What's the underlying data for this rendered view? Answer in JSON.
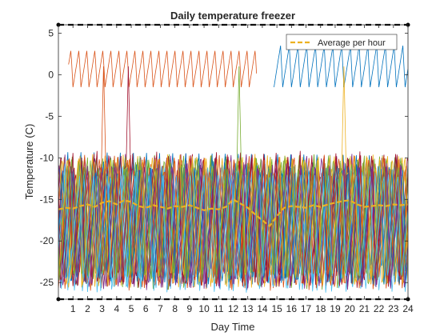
{
  "chart_data": {
    "type": "line",
    "title": "Daily temperature freezer",
    "xlabel": "Day Time",
    "ylabel": "Temperature (C)",
    "xlim": [
      0,
      24
    ],
    "ylim": [
      -27,
      6
    ],
    "xticks": [
      1,
      2,
      3,
      4,
      5,
      6,
      7,
      8,
      9,
      10,
      11,
      12,
      13,
      14,
      15,
      16,
      17,
      18,
      19,
      20,
      21,
      22,
      23,
      24
    ],
    "yticks": [
      -25,
      -20,
      -15,
      -10,
      -5,
      0,
      5
    ],
    "grid": false,
    "legend": {
      "location": "top-right",
      "entries": [
        "Average per hour"
      ]
    },
    "reference_lines": {
      "upper": 6,
      "lower": -27,
      "color": "#000000",
      "style": "dashed"
    },
    "series_colors": [
      "#0072BD",
      "#D95319",
      "#EDB120",
      "#7E2F8E",
      "#77AC30",
      "#4DBEEE",
      "#A2142F"
    ],
    "series": [
      {
        "name": "Average per hour",
        "color": "#EDB120",
        "style": "dashed",
        "x": [
          0,
          0.5,
          1,
          1.5,
          2,
          2.5,
          3,
          3.5,
          4,
          4.5,
          5,
          5.5,
          6,
          6.5,
          7,
          7.5,
          8,
          8.5,
          9,
          9.5,
          10,
          10.5,
          11,
          11.5,
          12,
          12.5,
          13,
          13.5,
          14,
          14.5,
          15,
          15.5,
          16,
          16.5,
          17,
          17.5,
          18,
          18.5,
          19,
          19.5,
          20,
          20.5,
          21,
          21.5,
          22,
          22.5,
          23,
          23.5,
          24
        ],
        "y": [
          -16.2,
          -16.0,
          -16.1,
          -15.8,
          -15.6,
          -15.9,
          -15.4,
          -15.2,
          -15.6,
          -15.1,
          -15.3,
          -15.8,
          -16.0,
          -15.7,
          -15.9,
          -16.1,
          -15.8,
          -15.9,
          -15.7,
          -16.0,
          -16.3,
          -16.1,
          -16.2,
          -15.9,
          -15.0,
          -15.5,
          -16.0,
          -16.8,
          -17.5,
          -18.2,
          -17.0,
          -16.0,
          -15.8,
          -15.9,
          -16.0,
          -15.7,
          -15.9,
          -15.6,
          -15.4,
          -15.2,
          -15.1,
          -15.6,
          -15.9,
          -15.8,
          -15.7,
          -15.8,
          -15.6,
          -15.7,
          -15.6
        ]
      }
    ],
    "visual_notes": "Dozens of overlapping thin oscillating sensor traces between about -27 and -9 C, plus traces near 0 to 3 C (orange, x 0-14) and -1 to 4 C (blue, x 15-24), with occasional spikes."
  }
}
